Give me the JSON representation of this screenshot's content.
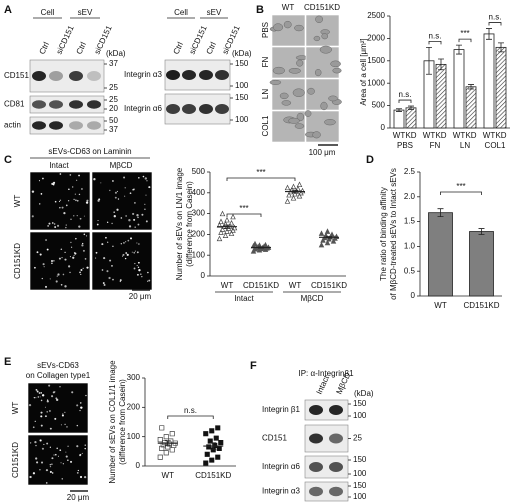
{
  "panel_labels": [
    "A",
    "B",
    "C",
    "D",
    "E",
    "F"
  ],
  "blot_a_left": {
    "groups": [
      "Cell",
      "sEV"
    ],
    "lanes": [
      "Ctrl",
      "siCD151",
      "Ctrl",
      "siCD151"
    ],
    "unit": "(kDa)",
    "rows": [
      {
        "label": "CD151",
        "markers": [
          37,
          25
        ]
      },
      {
        "label": "CD81",
        "markers": [
          25,
          20
        ]
      },
      {
        "label": "actin",
        "markers": [
          50,
          37
        ]
      }
    ]
  },
  "blot_a_right": {
    "groups": [
      "Cell",
      "sEV"
    ],
    "lanes": [
      "Ctrl",
      "siCD151",
      "Ctrl",
      "siCD151"
    ],
    "unit": "(kDa)",
    "rows": [
      {
        "label": "Integrin α3",
        "markers": [
          150,
          100
        ]
      },
      {
        "label": "Integrin α6",
        "markers": [
          150,
          100
        ]
      }
    ]
  },
  "images_b": {
    "columns": [
      "WT",
      "CD151KD"
    ],
    "rows": [
      "PBS",
      "FN",
      "LN",
      "COL1"
    ],
    "scale_bar": "100 μm"
  },
  "images_c": {
    "title": "sEVs-CD63 on Laminin",
    "columns": [
      "Intact",
      "MβCD"
    ],
    "rows": [
      "WT",
      "CD151KD"
    ],
    "scale_bar": "20 μm"
  },
  "images_e": {
    "title": [
      "sEVs-CD63",
      "on Collagen type1"
    ],
    "rows": [
      "WT",
      "CD151KD"
    ],
    "scale_bar": "20 μm"
  },
  "blot_f": {
    "title": "IP: α-Integrinβ1",
    "lanes": [
      "Intact",
      "MβCD"
    ],
    "unit": "(kDa)",
    "rows": [
      {
        "label": "Integrin β1",
        "markers": [
          150,
          100
        ]
      },
      {
        "label": "CD151",
        "markers": [
          25
        ]
      },
      {
        "label": "Integrin α6",
        "markers": [
          150,
          100
        ]
      },
      {
        "label": "Integrin α3",
        "markers": [
          150,
          100
        ]
      }
    ]
  },
  "chart_data": [
    {
      "type": "bar",
      "y_label": "Area of a cell [μm²]",
      "categories": [
        "PBS",
        "FN",
        "LN",
        "COL1"
      ],
      "series": [
        {
          "name": "WT",
          "color": "#ffffff",
          "hatch": false,
          "values": [
            400,
            1500,
            1750,
            2100
          ],
          "errors": [
            30,
            300,
            100,
            120
          ]
        },
        {
          "name": "KD",
          "color": "#333333",
          "hatch": true,
          "values": [
            450,
            1420,
            920,
            1800
          ],
          "errors": [
            40,
            120,
            50,
            100
          ]
        }
      ],
      "ylim": [
        0,
        2500
      ],
      "yticks": [
        0,
        500,
        1000,
        1500,
        2000,
        2500
      ],
      "significance": [
        "n.s.",
        "n.s.",
        "***",
        "n.s."
      ]
    },
    {
      "type": "scatter",
      "y_label": [
        "Number of sEVs on LN/1 image",
        "(difference from Casein)"
      ],
      "categories": [
        "WT",
        "CD151KD",
        "WT",
        "CD151KD"
      ],
      "groups": [
        "Intact",
        "MβCD"
      ],
      "marker": "triangle",
      "marker_fill": [
        "none",
        "#555555",
        "none",
        "#555555"
      ],
      "points": [
        [
          180,
          195,
          205,
          210,
          215,
          220,
          225,
          230,
          232,
          238,
          240,
          245,
          250,
          255,
          262,
          270,
          285,
          300
        ],
        [
          120,
          125,
          128,
          130,
          132,
          134,
          135,
          136,
          138,
          140,
          142,
          145,
          148,
          150,
          155
        ],
        [
          360,
          375,
          385,
          390,
          395,
          400,
          405,
          408,
          410,
          415,
          420,
          425,
          430,
          440
        ],
        [
          150,
          160,
          168,
          172,
          178,
          182,
          185,
          188,
          190,
          195,
          200,
          205,
          215
        ]
      ],
      "means": [
        237,
        137,
        406,
        186
      ],
      "errors": [
        8,
        3,
        6,
        4
      ],
      "ylim": [
        0,
        500
      ],
      "yticks": [
        0,
        100,
        200,
        300,
        400,
        500
      ],
      "significance": [
        "***",
        "***"
      ]
    },
    {
      "type": "bar",
      "y_label": [
        "The ratio of binding affinity",
        "of MβCD-treated sEVs to Intact sEVs"
      ],
      "categories": [
        "WT",
        "CD151KD"
      ],
      "values": [
        1.68,
        1.3
      ],
      "errors": [
        0.08,
        0.06
      ],
      "color": "#7f7f7f",
      "ylim": [
        0,
        2.5
      ],
      "yticks": [
        0,
        0.5,
        {
          "value": 1,
          "label": "1.0"
        },
        1.5,
        {
          "value": 2,
          "label": "2.0"
        },
        2.5
      ],
      "significance": "***"
    },
    {
      "type": "scatter",
      "y_label": [
        "Number of sEVs on COL1/1 image",
        "(difference from Casein)"
      ],
      "categories": [
        "WT",
        "CD151KD"
      ],
      "marker": "square",
      "marker_fill": [
        "none",
        "#111111"
      ],
      "points": [
        [
          30,
          45,
          55,
          60,
          65,
          70,
          72,
          75,
          78,
          80,
          85,
          90,
          100,
          110,
          130
        ],
        [
          10,
          20,
          30,
          40,
          55,
          60,
          65,
          70,
          80,
          85,
          95,
          110,
          120,
          130
        ]
      ],
      "means": [
        78,
        68
      ],
      "errors": [
        8,
        11
      ],
      "ylim": [
        0,
        300
      ],
      "yticks": [
        0,
        100,
        200,
        300
      ],
      "significance": "n.s."
    }
  ]
}
